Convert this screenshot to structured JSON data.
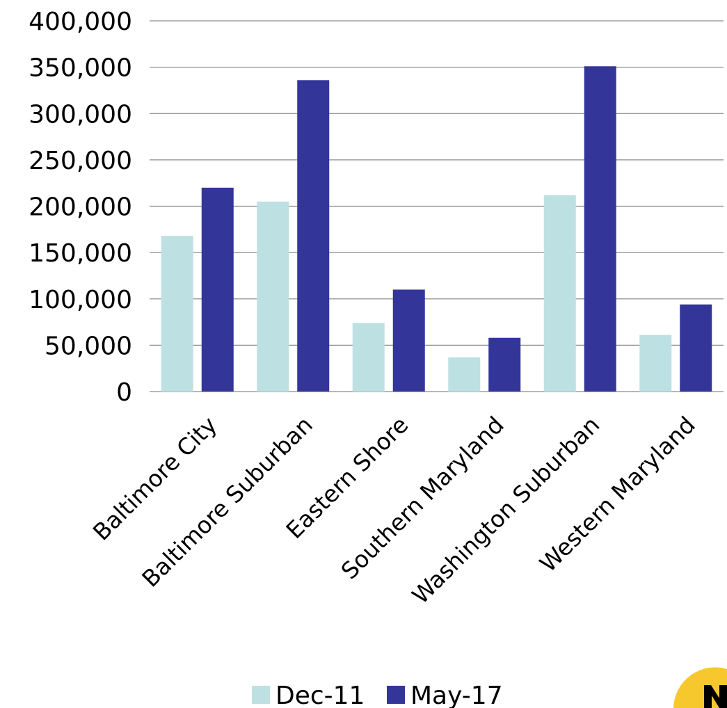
{
  "chart_data": {
    "type": "bar",
    "categories": [
      "Baltimore City",
      "Baltimore Suburban",
      "Eastern Shore",
      "Southern Maryland",
      "Washington Suburban",
      "Western Maryland"
    ],
    "series": [
      {
        "name": "Dec-11",
        "color": "#bde0e3",
        "values": [
          168000,
          205000,
          74000,
          37000,
          212000,
          61000
        ]
      },
      {
        "name": "May-17",
        "color": "#343599",
        "values": [
          220000,
          336000,
          110000,
          58000,
          351000,
          94000
        ]
      }
    ],
    "y_ticks": [
      "0",
      "50,000",
      "100,000",
      "150,000",
      "200,000",
      "250,000",
      "300,000",
      "350,000",
      "400,000"
    ],
    "ylim": [
      0,
      400000
    ],
    "grid": true,
    "legend_position": "bottom-center",
    "title": "",
    "xlabel": "",
    "ylabel": ""
  },
  "logo": {
    "colors": [
      "#f6c82e",
      "#000000"
    ]
  }
}
